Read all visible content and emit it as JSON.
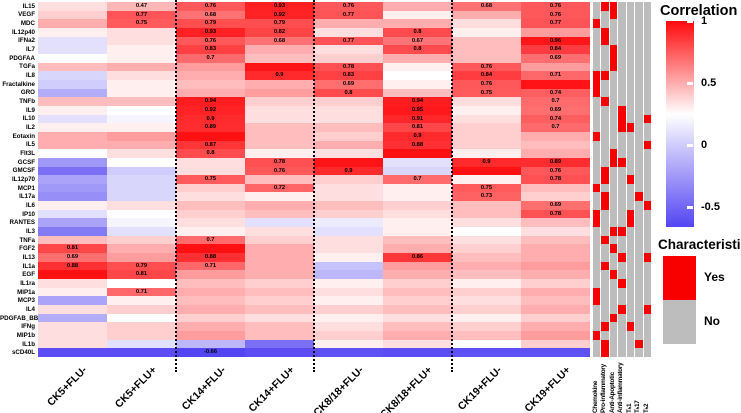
{
  "legend": {
    "title": "Correlation",
    "ticks": [
      {
        "label": "1",
        "value": 1
      },
      {
        "label": "0.5",
        "value": 0.5
      },
      {
        "label": "0",
        "value": 0
      },
      {
        "label": "-0.5",
        "value": -0.5
      }
    ]
  },
  "char_legend": {
    "title": "Characteristic",
    "items": [
      {
        "label": "Yes",
        "color": "#f80000"
      },
      {
        "label": "No",
        "color": "#bdbdbd"
      }
    ]
  },
  "colors": {
    "heat_max_red": "#ff090c",
    "heat_mid_white": "#ffffff",
    "heat_min_blue": "#5345f2",
    "char_yes": "#f80000",
    "char_no": "#bdbdbd",
    "separator": "#000000"
  },
  "chart_data": {
    "type": "heatmap",
    "title": "",
    "colormap": {
      "max": 1,
      "white_at": 0.25,
      "min": -0.66,
      "legend_range": [
        1,
        -0.5
      ]
    },
    "columns": [
      "CK5+FLU-",
      "CK5+FLU+",
      "CK14+FLU-",
      "CK14+FLU+",
      "CK8/18+FLU-",
      "CK8/18+FLU+",
      "CK19+FLU-",
      "CK19+FLU+"
    ],
    "group_separators_after_column": [
      2,
      4,
      6
    ],
    "characteristic_columns": [
      "Chemokine",
      "Pro-inflammatory",
      "Anti-Apoptotic",
      "Anti-inflammatory",
      "Tₕ1",
      "Tₕ17",
      "Tₕ2"
    ],
    "rows": [
      {
        "name": "IL15",
        "v": [
          0.35,
          0.47,
          0.76,
          0.93,
          0.76,
          0.5,
          0.68,
          0.76
        ],
        "t": [
          "",
          "0.47",
          "0.76",
          "0.93",
          "0.76",
          "",
          "0.68",
          "0.76"
        ],
        "c": [
          0,
          1,
          1,
          0,
          0,
          0,
          0
        ]
      },
      {
        "name": "VEGF",
        "v": [
          0.4,
          0.77,
          0.68,
          0.92,
          0.77,
          0.3,
          0.5,
          0.76
        ],
        "t": [
          "",
          "0.77",
          "0.68",
          "0.92",
          "0.77",
          "",
          "",
          "0.76"
        ],
        "c": [
          0,
          0,
          1,
          0,
          0,
          0,
          0
        ]
      },
      {
        "name": "MDC",
        "v": [
          0.5,
          0.75,
          0.79,
          0.79,
          0.5,
          0.5,
          0.35,
          0.77
        ],
        "t": [
          "",
          "0.75",
          "0.79",
          "0.79",
          "",
          "",
          "",
          "0.77"
        ],
        "c": [
          1,
          0,
          0,
          0,
          0,
          0,
          0
        ]
      },
      {
        "name": "IL12p40",
        "v": [
          0.3,
          0.35,
          0.93,
          0.82,
          0.35,
          0.8,
          0.3,
          0.55
        ],
        "t": [
          "",
          "",
          "0.93",
          "0.82",
          "",
          "0.8",
          "",
          ""
        ],
        "c": [
          0,
          1,
          0,
          0,
          0,
          0,
          0
        ]
      },
      {
        "name": "IFNa2",
        "v": [
          0.1,
          0.35,
          0.76,
          0.68,
          0.77,
          0.67,
          0.45,
          0.96
        ],
        "t": [
          "",
          "",
          "0.76",
          "0.68",
          "0.77",
          "0.67",
          "",
          "0.96"
        ],
        "c": [
          0,
          1,
          0,
          0,
          0,
          0,
          0
        ]
      },
      {
        "name": "IL7",
        "v": [
          0.1,
          0.3,
          0.83,
          0.5,
          0.35,
          0.8,
          0.45,
          0.84
        ],
        "t": [
          "",
          "",
          "0.83",
          "",
          "",
          "0.8",
          "",
          "0.84"
        ],
        "c": [
          0,
          0,
          1,
          0,
          0,
          0,
          0
        ]
      },
      {
        "name": "PDGFAA",
        "v": [
          0.25,
          0.3,
          0.7,
          0.45,
          0.4,
          0.5,
          0.45,
          0.69
        ],
        "t": [
          "",
          "",
          "0.7",
          "",
          "",
          "",
          "",
          "0.69"
        ],
        "c": [
          0,
          0,
          1,
          0,
          0,
          0,
          0
        ]
      },
      {
        "name": "TGFa",
        "v": [
          0.45,
          0.5,
          0.55,
          0.97,
          0.78,
          0.3,
          0.76,
          0.55
        ],
        "t": [
          "",
          "",
          "",
          "",
          "0.78",
          "",
          "0.76",
          ""
        ],
        "c": [
          0,
          0,
          1,
          0,
          0,
          0,
          0
        ]
      },
      {
        "name": "IL8",
        "v": [
          0.05,
          0.35,
          0.5,
          0.9,
          0.83,
          0.25,
          0.84,
          0.71
        ],
        "t": [
          "",
          "",
          "",
          "0.9",
          "0.83",
          "",
          "0.84",
          "0.71"
        ],
        "c": [
          1,
          1,
          0,
          0,
          0,
          0,
          0
        ]
      },
      {
        "name": "Fractalkine",
        "v": [
          0.0,
          0.3,
          0.45,
          0.5,
          0.69,
          0.3,
          0.76,
          0.97
        ],
        "t": [
          "",
          "",
          "",
          "",
          "0.69",
          "",
          "0.76",
          ""
        ],
        "c": [
          1,
          0,
          0,
          0,
          0,
          0,
          0
        ]
      },
      {
        "name": "GRO",
        "v": [
          -0.15,
          0.3,
          0.5,
          0.55,
          0.8,
          0.45,
          0.75,
          0.74
        ],
        "t": [
          "",
          "",
          "",
          "",
          "0.8",
          "",
          "0.75",
          "0.74"
        ],
        "c": [
          1,
          0,
          0,
          0,
          0,
          0,
          0
        ]
      },
      {
        "name": "TNFb",
        "v": [
          0.45,
          0.45,
          0.94,
          0.4,
          0.4,
          0.94,
          0.35,
          0.7
        ],
        "t": [
          "",
          "",
          "0.94",
          "",
          "",
          "0.94",
          "",
          "0.7"
        ],
        "c": [
          0,
          1,
          0,
          0,
          0,
          0,
          0
        ]
      },
      {
        "name": "IL9",
        "v": [
          0.3,
          0.25,
          0.92,
          0.35,
          0.35,
          0.95,
          0.3,
          0.69
        ],
        "t": [
          "",
          "",
          "0.92",
          "",
          "",
          "0.95",
          "",
          "0.69"
        ],
        "c": [
          0,
          0,
          0,
          1,
          0,
          0,
          0
        ]
      },
      {
        "name": "IL10",
        "v": [
          0.1,
          0.2,
          0.9,
          0.35,
          0.35,
          0.91,
          0.35,
          0.74
        ],
        "t": [
          "",
          "",
          "0.9",
          "",
          "",
          "0.91",
          "",
          "0.74"
        ],
        "c": [
          0,
          0,
          0,
          1,
          0,
          0,
          1
        ]
      },
      {
        "name": "IL2",
        "v": [
          0.3,
          0.3,
          0.89,
          0.45,
          0.45,
          0.81,
          0.4,
          0.7
        ],
        "t": [
          "",
          "",
          "0.89",
          "",
          "",
          "0.81",
          "",
          "0.7"
        ],
        "c": [
          0,
          0,
          0,
          1,
          1,
          0,
          0
        ]
      },
      {
        "name": "Eotaxin",
        "v": [
          0.5,
          0.55,
          0.98,
          0.45,
          0.4,
          0.9,
          0.4,
          0.5
        ],
        "t": [
          "",
          "",
          "",
          "",
          "",
          "0.9",
          "",
          ""
        ],
        "c": [
          1,
          0,
          0,
          0,
          0,
          0,
          0
        ]
      },
      {
        "name": "IL5",
        "v": [
          0.5,
          0.5,
          0.87,
          0.45,
          0.5,
          0.88,
          0.4,
          0.45
        ],
        "t": [
          "",
          "",
          "0.87",
          "",
          "",
          "0.88",
          "",
          ""
        ],
        "c": [
          0,
          0,
          0,
          0,
          0,
          0,
          1
        ]
      },
      {
        "name": "Flt3L",
        "v": [
          0.25,
          0.35,
          0.8,
          0.3,
          0.35,
          0.98,
          0.3,
          0.5
        ],
        "t": [
          "",
          "",
          "0.8",
          "",
          "",
          "",
          "",
          ""
        ],
        "c": [
          0,
          0,
          1,
          0,
          0,
          0,
          0
        ]
      },
      {
        "name": "GCSF",
        "v": [
          -0.25,
          0.25,
          0.35,
          0.78,
          0.97,
          0.1,
          0.9,
          0.89
        ],
        "t": [
          "",
          "",
          "",
          "0.78",
          "",
          "",
          "0.9",
          "0.89"
        ],
        "c": [
          0,
          0,
          1,
          1,
          0,
          0,
          0
        ]
      },
      {
        "name": "GMCSF",
        "v": [
          -0.45,
          0.0,
          0.35,
          0.76,
          0.9,
          0.05,
          0.98,
          0.76
        ],
        "t": [
          "",
          "",
          "",
          "0.76",
          "0.9",
          "",
          "",
          "0.76"
        ],
        "c": [
          0,
          1,
          0,
          0,
          0,
          0,
          0
        ]
      },
      {
        "name": "IL12p70",
        "v": [
          -0.2,
          0.05,
          0.75,
          0.45,
          0.4,
          0.7,
          0.3,
          0.78
        ],
        "t": [
          "",
          "",
          "0.75",
          "",
          "",
          "0.7",
          "",
          "0.78"
        ],
        "c": [
          0,
          1,
          0,
          0,
          1,
          0,
          0
        ]
      },
      {
        "name": "MCP1",
        "v": [
          -0.25,
          0.05,
          0.4,
          0.72,
          0.35,
          0.3,
          0.75,
          0.45
        ],
        "t": [
          "",
          "",
          "",
          "0.72",
          "",
          "",
          "0.75",
          ""
        ],
        "c": [
          1,
          0,
          0,
          0,
          0,
          0,
          0
        ]
      },
      {
        "name": "IL17a",
        "v": [
          -0.3,
          0.05,
          0.35,
          0.3,
          0.35,
          0.3,
          0.73,
          0.4
        ],
        "t": [
          "",
          "",
          "",
          "",
          "",
          "",
          "0.73",
          ""
        ],
        "c": [
          0,
          1,
          0,
          0,
          0,
          1,
          0
        ]
      },
      {
        "name": "IL6",
        "v": [
          0.3,
          0.35,
          0.45,
          0.5,
          0.45,
          0.4,
          0.45,
          0.69
        ],
        "t": [
          "",
          "",
          "",
          "",
          "",
          "",
          "",
          "0.69"
        ],
        "c": [
          0,
          1,
          0,
          0,
          0,
          0,
          1
        ]
      },
      {
        "name": "IP10",
        "v": [
          0.1,
          0.25,
          0.4,
          0.45,
          0.4,
          0.35,
          0.45,
          0.78
        ],
        "t": [
          "",
          "",
          "",
          "",
          "",
          "",
          "",
          "0.78"
        ],
        "c": [
          1,
          0,
          0,
          0,
          1,
          0,
          0
        ]
      },
      {
        "name": "RANTES",
        "v": [
          -0.2,
          0.2,
          0.35,
          0.1,
          0.15,
          0.3,
          0.35,
          0.45
        ],
        "t": [
          "",
          "",
          "",
          "",
          "",
          "",
          "",
          ""
        ],
        "c": [
          1,
          0,
          0,
          0,
          1,
          0,
          0
        ]
      },
      {
        "name": "IL3",
        "v": [
          -0.4,
          0.1,
          0.3,
          0.35,
          0.1,
          0.3,
          0.25,
          0.35
        ],
        "t": [
          "",
          "",
          "",
          "",
          "",
          "",
          "",
          ""
        ],
        "c": [
          0,
          0,
          1,
          1,
          0,
          0,
          0
        ]
      },
      {
        "name": "TNFa",
        "v": [
          0.45,
          0.4,
          0.7,
          0.4,
          0.35,
          0.45,
          0.35,
          0.45
        ],
        "t": [
          "",
          "",
          "0.7",
          "",
          "",
          "",
          "",
          ""
        ],
        "c": [
          0,
          1,
          0,
          0,
          0,
          0,
          0
        ]
      },
      {
        "name": "FGF2",
        "v": [
          0.81,
          0.5,
          0.98,
          0.5,
          0.35,
          0.5,
          0.4,
          0.5
        ],
        "t": [
          "0.81",
          "",
          "",
          "",
          "",
          "",
          "",
          ""
        ],
        "c": [
          0,
          0,
          1,
          0,
          0,
          0,
          0
        ]
      },
      {
        "name": "IL13",
        "v": [
          0.69,
          0.55,
          0.88,
          0.5,
          0.3,
          0.86,
          0.45,
          0.5
        ],
        "t": [
          "0.69",
          "",
          "0.88",
          "",
          "",
          "0.86",
          "",
          ""
        ],
        "c": [
          0,
          0,
          0,
          1,
          0,
          0,
          1
        ]
      },
      {
        "name": "IL1a",
        "v": [
          0.88,
          0.79,
          0.71,
          0.5,
          -0.05,
          0.55,
          0.5,
          0.55
        ],
        "t": [
          "0.88",
          "0.79",
          "0.71",
          "",
          "",
          "",
          "",
          ""
        ],
        "c": [
          0,
          1,
          0,
          0,
          0,
          0,
          0
        ]
      },
      {
        "name": "EGF",
        "v": [
          0.98,
          0.81,
          0.55,
          0.5,
          -0.1,
          0.5,
          0.45,
          0.5
        ],
        "t": [
          "",
          "0.81",
          "",
          "",
          "",
          "",
          "",
          ""
        ],
        "c": [
          0,
          0,
          1,
          0,
          0,
          0,
          0
        ]
      },
      {
        "name": "IL1ra",
        "v": [
          0.35,
          0.25,
          0.45,
          0.4,
          0.3,
          0.4,
          0.3,
          0.4
        ],
        "t": [
          "",
          "",
          "",
          "",
          "",
          "",
          "",
          ""
        ],
        "c": [
          0,
          0,
          0,
          1,
          0,
          0,
          0
        ]
      },
      {
        "name": "MIP1a",
        "v": [
          0.3,
          0.71,
          0.5,
          0.45,
          0.35,
          0.45,
          0.4,
          0.5
        ],
        "t": [
          "",
          "0.71",
          "",
          "",
          "",
          "",
          "",
          ""
        ],
        "c": [
          1,
          0,
          0,
          0,
          0,
          0,
          0
        ]
      },
      {
        "name": "MCP3",
        "v": [
          -0.2,
          0.3,
          0.45,
          0.4,
          0.3,
          0.4,
          0.35,
          0.45
        ],
        "t": [
          "",
          "",
          "",
          "",
          "",
          "",
          "",
          ""
        ],
        "c": [
          1,
          0,
          0,
          0,
          0,
          0,
          0
        ]
      },
      {
        "name": "IL4",
        "v": [
          0.35,
          0.4,
          0.5,
          0.45,
          0.4,
          0.45,
          0.4,
          0.5
        ],
        "t": [
          "",
          "",
          "",
          "",
          "",
          "",
          "",
          ""
        ],
        "c": [
          0,
          0,
          0,
          1,
          0,
          0,
          1
        ]
      },
      {
        "name": "PDGFAB_BB",
        "v": [
          -0.15,
          0.25,
          0.4,
          0.35,
          0.3,
          0.35,
          0.3,
          0.4
        ],
        "t": [
          "",
          "",
          "",
          "",
          "",
          "",
          "",
          ""
        ],
        "c": [
          0,
          0,
          1,
          0,
          0,
          0,
          0
        ]
      },
      {
        "name": "IFNg",
        "v": [
          0.35,
          0.4,
          0.5,
          0.45,
          0.35,
          0.45,
          0.4,
          0.5
        ],
        "t": [
          "",
          "",
          "",
          "",
          "",
          "",
          "",
          ""
        ],
        "c": [
          0,
          1,
          0,
          0,
          1,
          0,
          0
        ]
      },
      {
        "name": "MIP1b",
        "v": [
          0.35,
          0.4,
          0.55,
          0.45,
          0.4,
          0.5,
          0.45,
          0.55
        ],
        "t": [
          "",
          "",
          "",
          "",
          "",
          "",
          "",
          ""
        ],
        "c": [
          1,
          0,
          0,
          0,
          0,
          0,
          0
        ]
      },
      {
        "name": "IL1b",
        "v": [
          0.35,
          0.1,
          -0.1,
          -0.45,
          0.3,
          0.35,
          0.25,
          0.4
        ],
        "t": [
          "",
          "",
          "",
          "",
          "",
          "",
          "",
          ""
        ],
        "c": [
          0,
          1,
          0,
          0,
          0,
          1,
          0
        ]
      },
      {
        "name": "sCD40L",
        "v": [
          -0.62,
          -0.62,
          -0.66,
          -0.62,
          -0.6,
          -0.62,
          -0.6,
          -0.6
        ],
        "t": [
          "",
          "",
          "-0.66",
          "",
          "",
          "",
          "",
          ""
        ],
        "c": [
          0,
          1,
          0,
          0,
          0,
          0,
          0
        ]
      }
    ]
  }
}
